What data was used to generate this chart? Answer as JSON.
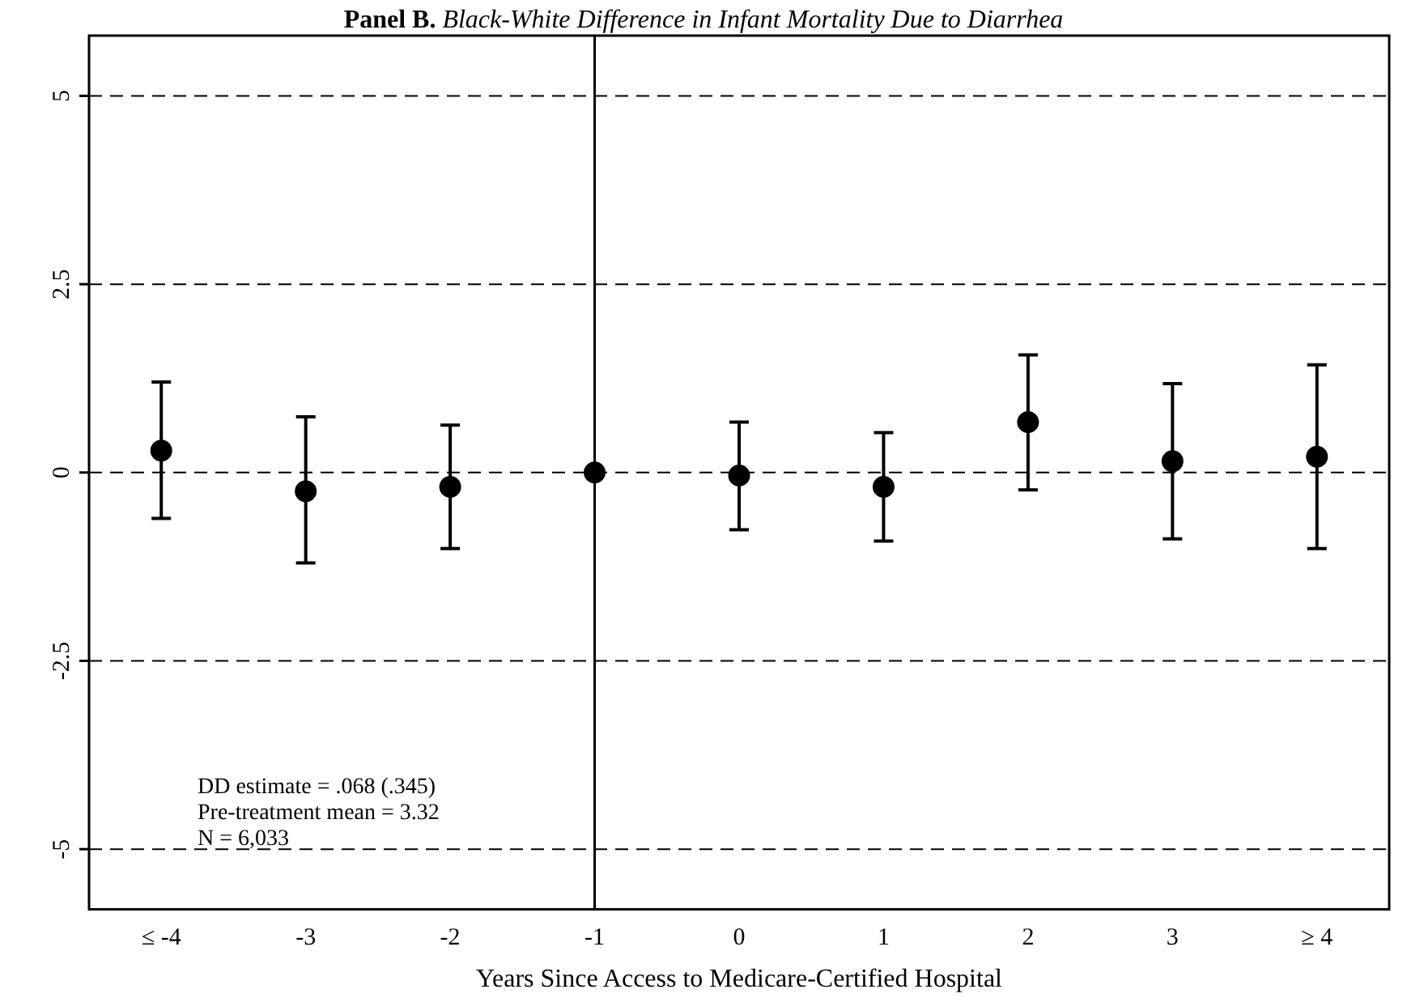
{
  "chart_data": {
    "type": "scatter",
    "title": "Panel B. Black-White Difference in Infant Mortality Due to Diarrhea",
    "xlabel": "Years Since Access to Medicare-Certified Hospital",
    "categories": [
      "≤ -4",
      "-3",
      "-2",
      "-1",
      "0",
      "1",
      "2",
      "3",
      "≥ 4"
    ],
    "values": [
      0.29,
      -0.25,
      -0.19,
      0,
      -0.04,
      -0.19,
      0.67,
      0.15,
      0.21
    ],
    "errors": [
      [
        -0.61,
        1.2
      ],
      [
        -1.2,
        0.74
      ],
      [
        -1.01,
        0.63
      ],
      null,
      [
        -0.76,
        0.67
      ],
      [
        -0.91,
        0.53
      ],
      [
        -0.23,
        1.56
      ],
      [
        -0.88,
        1.18
      ],
      [
        -1.01,
        1.43
      ]
    ],
    "color": "#000000",
    "marker": "circle",
    "ylim": [
      -5.8,
      5.8
    ],
    "yticks": [
      {
        "value": -5,
        "label": "-5"
      },
      {
        "value": -2.5,
        "label": "-2.5"
      },
      0,
      2.5,
      5
    ],
    "grid": "y",
    "legend": false,
    "ref_lines": [
      {
        "axis": "x",
        "value": "-1",
        "color": "#000000"
      }
    ],
    "annotations": [
      "DD estimate = .068 (.345)",
      "Pre-treatment mean = 3.32",
      "N = 6,033"
    ]
  }
}
